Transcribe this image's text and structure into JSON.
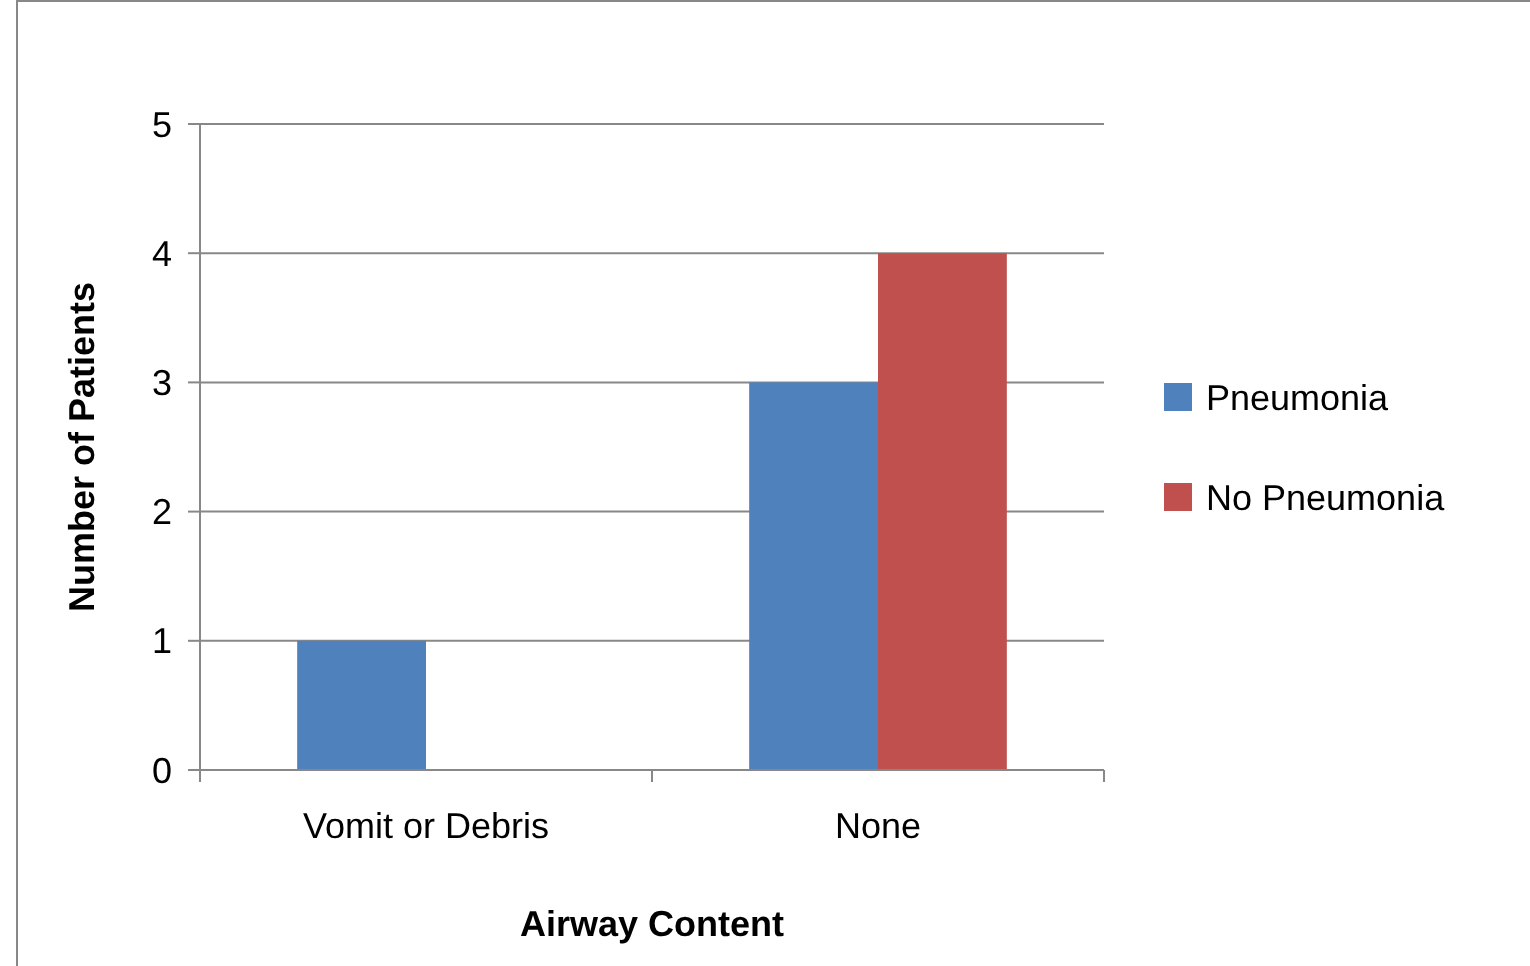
{
  "chart_data": {
    "type": "bar",
    "xlabel": "Airway Content",
    "ylabel": "Number of Patients",
    "categories": [
      "Vomit or Debris",
      "None"
    ],
    "series": [
      {
        "name": "Pneumonia",
        "color": "#4f81bd",
        "values": [
          1,
          3
        ]
      },
      {
        "name": "No Pneumonia",
        "color": "#c0504d",
        "values": [
          0,
          4
        ]
      }
    ],
    "ylim": [
      0,
      5
    ],
    "yticks": [
      0,
      1,
      2,
      3,
      4,
      5
    ],
    "grid": "y",
    "legend": "right"
  }
}
